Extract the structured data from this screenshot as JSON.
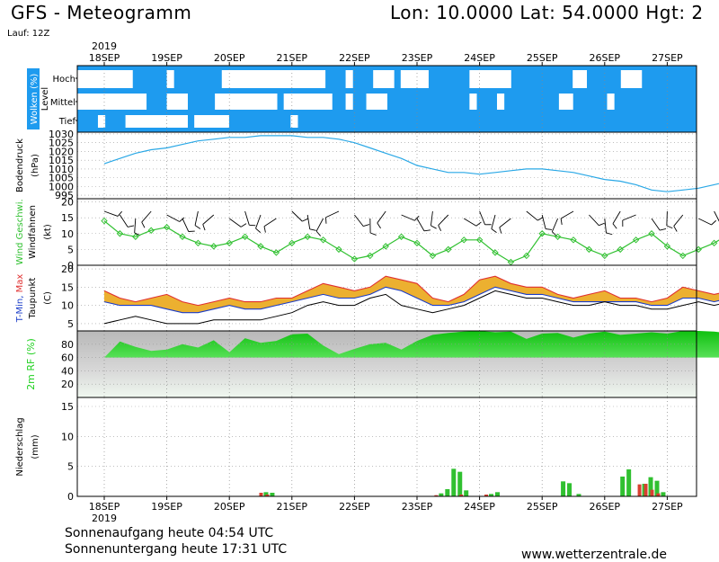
{
  "header": {
    "title": "GFS - Meteogramm",
    "coords": "Lon: 10.0000 Lat: 54.0000 Hgt: 2",
    "run": "Lauf: 12Z"
  },
  "footer": {
    "sunrise": "Sonnenaufgang heute 04:54 UTC",
    "sunset": "Sonnenuntergang heute 17:31 UTC",
    "site": "www.wetterzentrale.de"
  },
  "colors": {
    "cloud": "#1e9bef",
    "pressure": "#2aa8e6",
    "wind_speed": "#30c030",
    "dewpoint": "#000000",
    "tmin": "#1a3cc8",
    "tmax": "#e03030",
    "temp_fill": "#ecb030",
    "humidity": "#20d020",
    "precip_rain": "#30c030",
    "precip_conv": "#d84030"
  },
  "chart_data": [
    {
      "type": "heatmap",
      "id": "clouds",
      "ylabel": "Wolken (%)",
      "side_label": "Level",
      "levels": [
        "Hoch",
        "Mittel",
        "Tief"
      ],
      "x_dates": [
        "18SEP",
        "19SEP",
        "20SEP",
        "21SEP",
        "22SEP",
        "23SEP",
        "24SEP",
        "25SEP",
        "26SEP",
        "27SEP"
      ],
      "year": "2019",
      "cover": {
        "hoch": [
          0,
          0,
          0,
          0,
          0,
          0,
          0,
          0,
          1,
          1,
          1,
          1,
          1,
          0,
          1,
          1,
          1,
          1,
          1,
          1,
          1,
          0,
          0,
          0,
          0,
          0,
          0,
          0,
          0,
          0,
          0,
          0,
          0,
          0,
          0,
          0,
          1,
          1,
          1,
          0,
          1,
          1,
          1,
          0,
          0,
          0,
          1,
          0,
          0,
          0,
          0,
          1,
          1,
          1,
          1,
          1,
          1,
          0,
          0,
          0,
          0,
          0,
          0,
          1,
          1,
          1,
          1,
          1,
          1,
          1,
          1,
          1,
          0,
          0,
          1,
          1,
          1,
          1,
          1,
          0,
          0,
          0,
          1,
          1,
          1,
          1,
          1,
          1,
          1,
          1
        ],
        "mittel": [
          0,
          0,
          0,
          0,
          0,
          0,
          0,
          0,
          0,
          0,
          1,
          1,
          1,
          0,
          0,
          0,
          1,
          1,
          1,
          1,
          0,
          0,
          0,
          0,
          0,
          0,
          0,
          0,
          0,
          1,
          0,
          0,
          0,
          0,
          0,
          0,
          0,
          1,
          1,
          0,
          1,
          1,
          0,
          0,
          0,
          1,
          1,
          1,
          1,
          1,
          1,
          1,
          1,
          1,
          1,
          1,
          1,
          0,
          1,
          1,
          1,
          0,
          1,
          1,
          1,
          1,
          1,
          1,
          1,
          1,
          0,
          0,
          1,
          1,
          1,
          1,
          1,
          0,
          1,
          1,
          1,
          1,
          1,
          1,
          1,
          1,
          1,
          1,
          1,
          1
        ],
        "tief": [
          1,
          1,
          1,
          0,
          1,
          1,
          1,
          0,
          0,
          0,
          0,
          0,
          0,
          0,
          0,
          0,
          1,
          0,
          0,
          0,
          0,
          0,
          1,
          1,
          1,
          1,
          1,
          1,
          1,
          1,
          1,
          0,
          1,
          1,
          1,
          1,
          1,
          1,
          1,
          1,
          1,
          1,
          1,
          1,
          1,
          1,
          1,
          1,
          1,
          1,
          1,
          1,
          1,
          1,
          1,
          1,
          1,
          1,
          1,
          1,
          1,
          1,
          1,
          1,
          1,
          1,
          1,
          1,
          1,
          1,
          1,
          1,
          1,
          1,
          1,
          1,
          1,
          1,
          1,
          1,
          1,
          1,
          1,
          1,
          1,
          1,
          1,
          1,
          1,
          1
        ]
      }
    },
    {
      "type": "line",
      "id": "pressure",
      "ylabel": "Bodendruck",
      "unit": "(hPa)",
      "yticks": [
        995,
        1000,
        1005,
        1010,
        1015,
        1020,
        1025,
        1030
      ],
      "ylim": [
        993,
        1031
      ],
      "x_days": [
        0,
        0.25,
        0.5,
        0.75,
        1,
        1.25,
        1.5,
        1.75,
        2,
        2.25,
        2.5,
        2.75,
        3,
        3.25,
        3.5,
        3.75,
        4,
        4.25,
        4.5,
        4.75,
        5,
        5.25,
        5.5,
        5.75,
        6,
        6.25,
        6.5,
        6.75,
        7,
        7.25,
        7.5,
        7.75,
        8,
        8.25,
        8.5,
        8.75,
        9,
        9.25,
        9.5,
        9.75,
        10
      ],
      "values": [
        1013,
        1016,
        1019,
        1021,
        1022,
        1024,
        1026,
        1027,
        1028,
        1028,
        1029,
        1029,
        1029,
        1028,
        1028,
        1027,
        1025,
        1022,
        1019,
        1016,
        1012,
        1010,
        1008,
        1008,
        1007,
        1008,
        1009,
        1010,
        1010,
        1009,
        1008,
        1006,
        1004,
        1003,
        1001,
        998,
        997,
        998,
        999,
        1001,
        1003
      ]
    },
    {
      "type": "line",
      "id": "wind",
      "ylabel": "Wind Geschwi.",
      "sublabel": "Windfahnen",
      "unit": "(kt)",
      "yticks": [
        0,
        5,
        10,
        15,
        20
      ],
      "ylim": [
        0,
        21
      ],
      "x_days": [
        0,
        0.25,
        0.5,
        0.75,
        1,
        1.25,
        1.5,
        1.75,
        2,
        2.25,
        2.5,
        2.75,
        3,
        3.25,
        3.5,
        3.75,
        4,
        4.25,
        4.5,
        4.75,
        5,
        5.25,
        5.5,
        5.75,
        6,
        6.25,
        6.5,
        6.75,
        7,
        7.25,
        7.5,
        7.75,
        8,
        8.25,
        8.5,
        8.75,
        9,
        9.25,
        9.5,
        9.75,
        10
      ],
      "values": [
        14,
        10,
        9,
        11,
        12,
        9,
        7,
        6,
        7,
        9,
        6,
        4,
        7,
        9,
        8,
        5,
        2,
        3,
        6,
        9,
        7,
        3,
        5,
        8,
        8,
        4,
        1,
        3,
        10,
        9,
        8,
        5,
        3,
        5,
        8,
        10,
        6,
        3,
        5,
        7,
        10
      ]
    },
    {
      "type": "line",
      "id": "temperature",
      "ylabel": "T-Min, Max",
      "sublabel": "Taupunkt",
      "unit": "(C)",
      "yticks": [
        5,
        10,
        15,
        20
      ],
      "ylim": [
        3,
        21
      ],
      "series": [
        {
          "name": "Max",
          "values": [
            14,
            12,
            11,
            12,
            13,
            11,
            10,
            11,
            12,
            11,
            11,
            12,
            12,
            14,
            16,
            15,
            14,
            15,
            18,
            17,
            16,
            12,
            11,
            13,
            17,
            18,
            16,
            15,
            15,
            13,
            12,
            13,
            14,
            12,
            12,
            11,
            12,
            15,
            14,
            13,
            14
          ]
        },
        {
          "name": "Min",
          "values": [
            11,
            10,
            10,
            10,
            9,
            8,
            8,
            9,
            10,
            9,
            9,
            10,
            11,
            12,
            13,
            12,
            12,
            13,
            15,
            14,
            12,
            10,
            10,
            11,
            13,
            15,
            14,
            13,
            13,
            12,
            11,
            11,
            11,
            11,
            11,
            10,
            10,
            12,
            12,
            11,
            12
          ]
        },
        {
          "name": "Taupunkt",
          "values": [
            5,
            6,
            7,
            6,
            5,
            5,
            5,
            6,
            6,
            6,
            6,
            7,
            8,
            10,
            11,
            10,
            10,
            12,
            13,
            10,
            9,
            8,
            9,
            10,
            12,
            14,
            13,
            12,
            12,
            11,
            10,
            10,
            11,
            10,
            10,
            9,
            9,
            10,
            11,
            10,
            11
          ]
        }
      ]
    },
    {
      "type": "area",
      "id": "humidity",
      "ylabel": "2m RF (%)",
      "yticks": [
        20,
        40,
        60,
        80
      ],
      "ylim": [
        0,
        100
      ],
      "x_days": [
        0,
        0.25,
        0.5,
        0.75,
        1,
        1.25,
        1.5,
        1.75,
        2,
        2.25,
        2.5,
        2.75,
        3,
        3.25,
        3.5,
        3.75,
        4,
        4.25,
        4.5,
        4.75,
        5,
        5.25,
        5.5,
        5.75,
        6,
        6.25,
        6.5,
        6.75,
        7,
        7.25,
        7.5,
        7.75,
        8,
        8.25,
        8.5,
        8.75,
        9,
        9.25,
        9.5,
        9.75,
        10
      ],
      "values": [
        58,
        84,
        76,
        70,
        72,
        80,
        75,
        86,
        68,
        89,
        82,
        85,
        95,
        96,
        78,
        65,
        73,
        80,
        82,
        72,
        85,
        94,
        97,
        99,
        100,
        98,
        99,
        88,
        96,
        97,
        90,
        96,
        99,
        94,
        96,
        98,
        96,
        100,
        100,
        99,
        96
      ]
    },
    {
      "type": "bar",
      "id": "precip",
      "ylabel": "Niederschlag",
      "unit": "(mm)",
      "yticks": [
        0,
        5,
        10,
        15
      ],
      "ylim": [
        0,
        16.5
      ],
      "bottom_dates": [
        "18SEP",
        "19SEP",
        "20SEP",
        "21SEP",
        "22SEP",
        "23SEP",
        "24SEP",
        "25SEP",
        "26SEP",
        "27SEP"
      ],
      "bottom_year": "2019",
      "bars": [
        {
          "x": 2.55,
          "rain": 0.7,
          "conv": 0.6
        },
        {
          "x": 2.65,
          "rain": 0.6,
          "conv": 0.3
        },
        {
          "x": 5.35,
          "rain": 0.5,
          "conv": 0.2
        },
        {
          "x": 5.45,
          "rain": 1.2,
          "conv": 0
        },
        {
          "x": 5.55,
          "rain": 4.6,
          "conv": 0
        },
        {
          "x": 5.65,
          "rain": 4.1,
          "conv": 0
        },
        {
          "x": 5.75,
          "rain": 1.0,
          "conv": 0.3
        },
        {
          "x": 6.15,
          "rain": 0.4,
          "conv": 0.3
        },
        {
          "x": 6.25,
          "rain": 0.7,
          "conv": 0
        },
        {
          "x": 7.3,
          "rain": 2.5,
          "conv": 0
        },
        {
          "x": 7.4,
          "rain": 2.2,
          "conv": 0
        },
        {
          "x": 7.55,
          "rain": 0.4,
          "conv": 0
        },
        {
          "x": 8.25,
          "rain": 3.3,
          "conv": 0
        },
        {
          "x": 8.35,
          "rain": 4.5,
          "conv": 0
        },
        {
          "x": 8.6,
          "rain": 2.1,
          "conv": 2.0
        },
        {
          "x": 8.7,
          "rain": 3.2,
          "conv": 2.1
        },
        {
          "x": 8.8,
          "rain": 2.6,
          "conv": 1.1
        },
        {
          "x": 8.9,
          "rain": 0.7,
          "conv": 0.5
        },
        {
          "x": 9.9,
          "rain": 0.6,
          "conv": 0.6
        }
      ]
    }
  ]
}
